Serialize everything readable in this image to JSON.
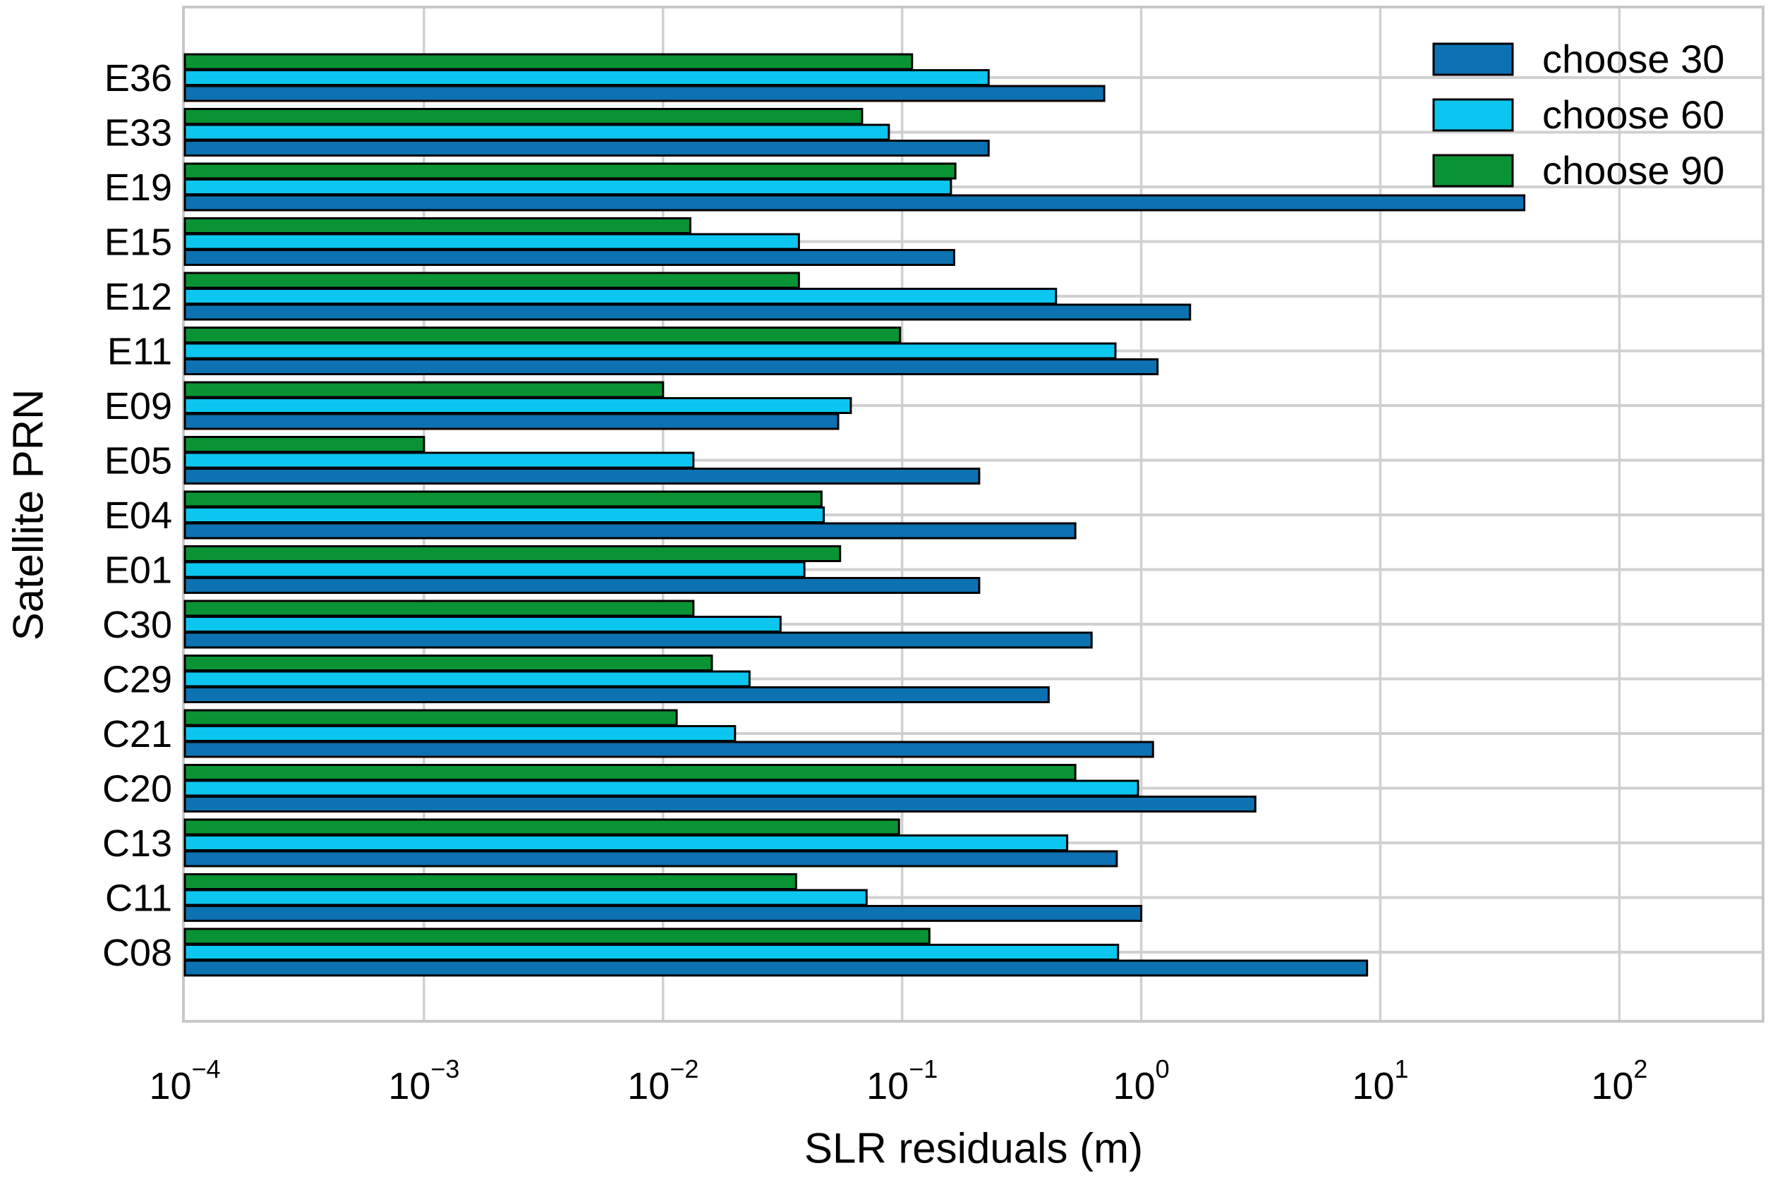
{
  "figure": {
    "background": "#ffffff"
  },
  "chart_data": {
    "type": "bar",
    "orientation": "horizontal",
    "title": "",
    "xlabel": "SLR residuals (m)",
    "ylabel": "Satellite PRN",
    "x_scale": "log",
    "xlim": [
      0.0001,
      400
    ],
    "x_tick_exponents": [
      -4,
      -3,
      -2,
      -1,
      0,
      1,
      2
    ],
    "grid": true,
    "legend_position": "upper right",
    "categories": [
      "E36",
      "E33",
      "E19",
      "E15",
      "E12",
      "E11",
      "E09",
      "E05",
      "E04",
      "E01",
      "C30",
      "C29",
      "C21",
      "C20",
      "C13",
      "C11",
      "C08"
    ],
    "series": [
      {
        "name": "choose 30",
        "color": "#0d72b2",
        "values": [
          0.7,
          0.23,
          40,
          0.165,
          1.6,
          1.17,
          0.054,
          0.21,
          0.53,
          0.21,
          0.62,
          0.41,
          1.12,
          3.0,
          0.79,
          1.0,
          8.8
        ]
      },
      {
        "name": "choose 60",
        "color": "#0cc6ef",
        "values": [
          0.23,
          0.088,
          0.16,
          0.037,
          0.44,
          0.78,
          0.061,
          0.0134,
          0.047,
          0.039,
          0.031,
          0.023,
          0.02,
          0.97,
          0.49,
          0.071,
          0.8
        ]
      },
      {
        "name": "choose 90",
        "color": "#0a9335",
        "values": [
          0.11,
          0.068,
          0.167,
          0.013,
          0.037,
          0.098,
          0.01,
          0.001,
          0.046,
          0.055,
          0.0134,
          0.016,
          0.0114,
          0.53,
          0.097,
          0.036,
          0.13
        ]
      }
    ],
    "bar_edge_color": "#000000",
    "grid_color": "#d0d0d0",
    "frame_color": "#c8c8c8",
    "text_color": "#000000"
  }
}
